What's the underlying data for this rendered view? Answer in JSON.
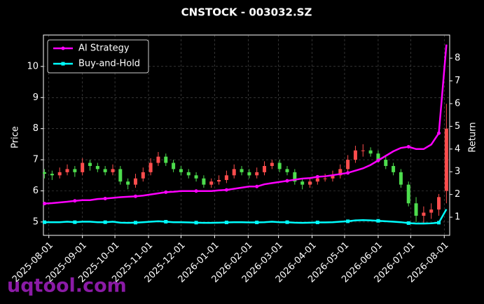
{
  "chart_data": {
    "type": "candlestick",
    "title": "CNSTOCK - 003032.SZ",
    "y_label": "Price",
    "y2_label": "Return",
    "watermark": "uqtool.com",
    "x": [
      "2025-07-28",
      "2025-08-04",
      "2025-08-11",
      "2025-08-18",
      "2025-08-25",
      "2025-09-01",
      "2025-09-08",
      "2025-09-15",
      "2025-09-22",
      "2025-09-29",
      "2025-10-06",
      "2025-10-13",
      "2025-10-20",
      "2025-10-27",
      "2025-11-03",
      "2025-11-10",
      "2025-11-17",
      "2025-11-24",
      "2025-12-01",
      "2025-12-08",
      "2025-12-15",
      "2025-12-22",
      "2025-12-29",
      "2026-01-05",
      "2026-01-12",
      "2026-01-19",
      "2026-01-26",
      "2026-02-02",
      "2026-02-09",
      "2026-02-16",
      "2026-02-23",
      "2026-03-02",
      "2026-03-09",
      "2026-03-16",
      "2026-03-23",
      "2026-03-30",
      "2026-04-06",
      "2026-04-13",
      "2026-04-20",
      "2026-04-27",
      "2026-05-04",
      "2026-05-11",
      "2026-05-18",
      "2026-05-25",
      "2026-06-01",
      "2026-06-08",
      "2026-06-15",
      "2026-06-22",
      "2026-06-29",
      "2026-07-06",
      "2026-07-13",
      "2026-07-20",
      "2026-07-27",
      "2026-08-03"
    ],
    "open": [
      6.6,
      6.55,
      6.5,
      6.6,
      6.7,
      6.6,
      6.9,
      6.8,
      6.7,
      6.6,
      6.7,
      6.3,
      6.2,
      6.4,
      6.6,
      6.9,
      7.1,
      6.9,
      6.7,
      6.6,
      6.5,
      6.4,
      6.2,
      6.3,
      6.35,
      6.5,
      6.7,
      6.6,
      6.5,
      6.6,
      6.8,
      6.9,
      6.7,
      6.6,
      6.3,
      6.2,
      6.3,
      6.4,
      6.4,
      6.5,
      6.7,
      7.0,
      7.3,
      7.3,
      7.2,
      7.0,
      6.8,
      6.6,
      6.2,
      5.6,
      5.2,
      5.3,
      5.4,
      6.0
    ],
    "high": [
      6.7,
      6.65,
      6.75,
      6.85,
      6.8,
      7.05,
      7.0,
      6.9,
      6.8,
      6.85,
      6.8,
      6.4,
      6.55,
      6.75,
      7.05,
      7.25,
      7.2,
      7.0,
      6.8,
      6.7,
      6.6,
      6.5,
      6.4,
      6.5,
      6.65,
      6.85,
      6.8,
      6.7,
      6.75,
      6.95,
      7.0,
      7.0,
      6.8,
      6.7,
      6.4,
      6.4,
      6.5,
      6.55,
      6.65,
      6.85,
      7.15,
      7.45,
      7.5,
      7.4,
      7.3,
      7.1,
      6.9,
      6.7,
      6.3,
      5.8,
      5.5,
      5.6,
      5.9,
      8.8
    ],
    "low": [
      6.4,
      6.35,
      6.4,
      6.5,
      6.45,
      6.5,
      6.65,
      6.6,
      6.5,
      6.5,
      6.2,
      6.05,
      6.1,
      6.3,
      6.5,
      6.8,
      6.8,
      6.6,
      6.5,
      6.4,
      6.3,
      6.1,
      6.1,
      6.2,
      6.25,
      6.4,
      6.5,
      6.4,
      6.4,
      6.5,
      6.7,
      6.6,
      6.5,
      6.2,
      6.05,
      6.1,
      6.2,
      6.3,
      6.3,
      6.4,
      6.6,
      6.9,
      7.1,
      7.1,
      6.9,
      6.7,
      6.5,
      6.1,
      5.5,
      5.0,
      4.95,
      5.1,
      5.2,
      5.6
    ],
    "close": [
      6.55,
      6.5,
      6.6,
      6.7,
      6.6,
      6.9,
      6.8,
      6.7,
      6.6,
      6.7,
      6.3,
      6.2,
      6.4,
      6.6,
      6.9,
      7.1,
      6.9,
      6.7,
      6.6,
      6.5,
      6.4,
      6.2,
      6.3,
      6.35,
      6.5,
      6.7,
      6.6,
      6.5,
      6.6,
      6.8,
      6.9,
      6.7,
      6.6,
      6.3,
      6.2,
      6.3,
      6.4,
      6.4,
      6.5,
      6.7,
      7.0,
      7.3,
      7.3,
      7.2,
      7.0,
      6.8,
      6.6,
      6.2,
      5.6,
      5.2,
      5.3,
      5.4,
      5.8,
      8.0
    ],
    "up_color": "#ff4d4d",
    "down_color": "#4ddd4d",
    "series": [
      {
        "name": "AI Strategy",
        "color": "#ff00ff",
        "axis": "y2",
        "marker": "circle",
        "values": [
          1.6,
          1.62,
          1.65,
          1.68,
          1.72,
          1.75,
          1.75,
          1.8,
          1.82,
          1.85,
          1.88,
          1.9,
          1.92,
          1.95,
          2.0,
          2.05,
          2.1,
          2.12,
          2.15,
          2.15,
          2.15,
          2.15,
          2.15,
          2.18,
          2.2,
          2.25,
          2.3,
          2.35,
          2.35,
          2.45,
          2.5,
          2.55,
          2.6,
          2.65,
          2.7,
          2.72,
          2.78,
          2.8,
          2.85,
          2.9,
          2.95,
          3.05,
          3.15,
          3.3,
          3.5,
          3.7,
          3.9,
          4.05,
          4.1,
          4.0,
          4.0,
          4.2,
          4.7,
          8.6
        ]
      },
      {
        "name": "Buy-and-Hold",
        "color": "#00ffff",
        "axis": "y2",
        "marker": "square",
        "values": [
          0.78,
          0.78,
          0.78,
          0.8,
          0.78,
          0.8,
          0.8,
          0.78,
          0.78,
          0.8,
          0.76,
          0.75,
          0.76,
          0.78,
          0.8,
          0.82,
          0.8,
          0.78,
          0.78,
          0.77,
          0.76,
          0.75,
          0.75,
          0.76,
          0.77,
          0.78,
          0.78,
          0.77,
          0.77,
          0.78,
          0.8,
          0.78,
          0.78,
          0.76,
          0.75,
          0.76,
          0.77,
          0.77,
          0.78,
          0.8,
          0.82,
          0.86,
          0.87,
          0.86,
          0.84,
          0.82,
          0.8,
          0.78,
          0.74,
          0.72,
          0.72,
          0.73,
          0.76,
          1.35
        ]
      }
    ],
    "xlim": [
      "2025-07-27",
      "2026-08-06"
    ],
    "xticks": [
      "2025-08-01",
      "2025-09-01",
      "2025-10-01",
      "2025-11-01",
      "2025-12-01",
      "2026-01-01",
      "2026-02-01",
      "2026-03-01",
      "2026-04-01",
      "2026-05-01",
      "2026-06-01",
      "2026-07-01",
      "2026-08-01"
    ],
    "ylim": [
      4.57,
      11.01
    ],
    "yticks": [
      5,
      6,
      7,
      8,
      9,
      10
    ],
    "y2lim": [
      0.2,
      9.02
    ],
    "y2ticks": [
      1,
      2,
      3,
      4,
      5,
      6,
      7,
      8
    ],
    "grid": true,
    "legend": "upper left"
  }
}
